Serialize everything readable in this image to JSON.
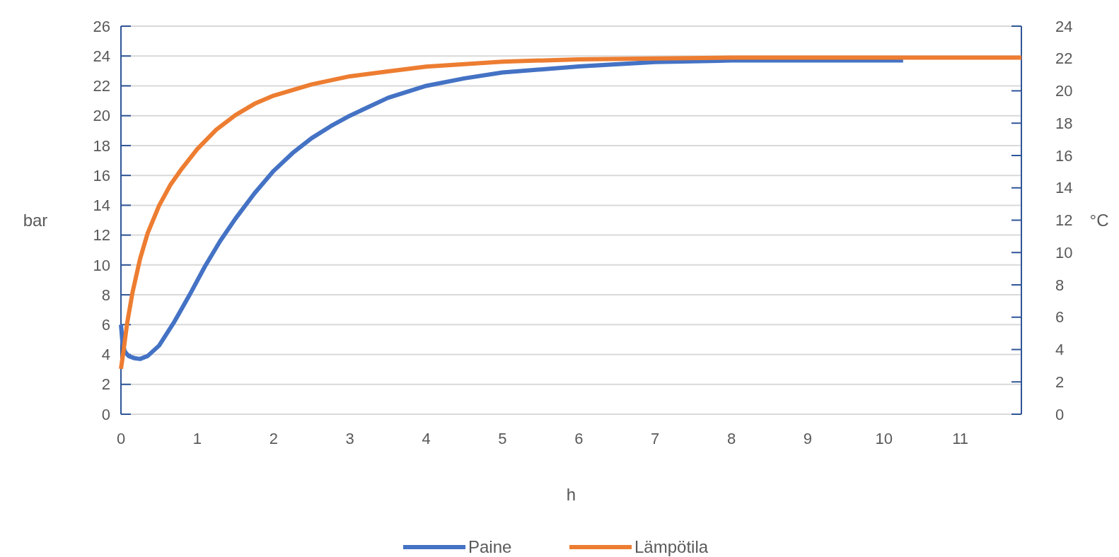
{
  "chart_data": {
    "type": "line",
    "xlabel": "h",
    "ylabel": "bar",
    "y2label": "°C",
    "xlim": [
      0,
      11.8
    ],
    "xticks": [
      0,
      1,
      2,
      3,
      4,
      5,
      6,
      7,
      8,
      9,
      10,
      11
    ],
    "ylim": [
      0,
      26
    ],
    "yticks": [
      0,
      2,
      4,
      6,
      8,
      10,
      12,
      14,
      16,
      18,
      20,
      22,
      24,
      26
    ],
    "y2lim": [
      0,
      24
    ],
    "y2ticks": [
      0,
      2,
      4,
      6,
      8,
      10,
      12,
      14,
      16,
      18,
      20,
      22,
      24
    ],
    "grid": "y",
    "legend": "bottom",
    "marker": "none",
    "line_style": "solid",
    "series": [
      {
        "name": "Paine",
        "color": "#4472c4",
        "x": [
          0,
          0.02,
          0.05,
          0.1,
          0.18,
          0.25,
          0.35,
          0.5,
          0.7,
          0.9,
          1.1,
          1.3,
          1.5,
          1.75,
          2,
          2.25,
          2.5,
          2.75,
          3,
          3.5,
          4,
          4.5,
          5,
          6,
          7,
          8,
          9,
          10.25
        ],
        "values": [
          6,
          4.8,
          4.2,
          3.9,
          3.75,
          3.7,
          3.9,
          4.6,
          6.2,
          8,
          9.9,
          11.6,
          13.1,
          14.8,
          16.3,
          17.5,
          18.5,
          19.3,
          20,
          21.2,
          22,
          22.5,
          22.9,
          23.3,
          23.6,
          23.7,
          23.7,
          23.7
        ]
      },
      {
        "name": "Lämpötila",
        "color": "#ed7d31",
        "axis": "y2",
        "x": [
          0,
          0.03,
          0.08,
          0.15,
          0.25,
          0.35,
          0.5,
          0.65,
          0.8,
          1,
          1.25,
          1.5,
          1.75,
          2,
          2.5,
          3,
          3.5,
          4,
          5,
          6,
          7,
          8,
          9,
          10,
          11.8
        ],
        "values": [
          2.8,
          3.8,
          5.6,
          7.5,
          9.6,
          11.2,
          12.9,
          14.2,
          15.2,
          16.4,
          17.6,
          18.5,
          19.2,
          19.7,
          20.4,
          20.9,
          21.2,
          21.5,
          21.8,
          21.95,
          22,
          22.05,
          22.05,
          22.05,
          22.05
        ]
      }
    ]
  }
}
